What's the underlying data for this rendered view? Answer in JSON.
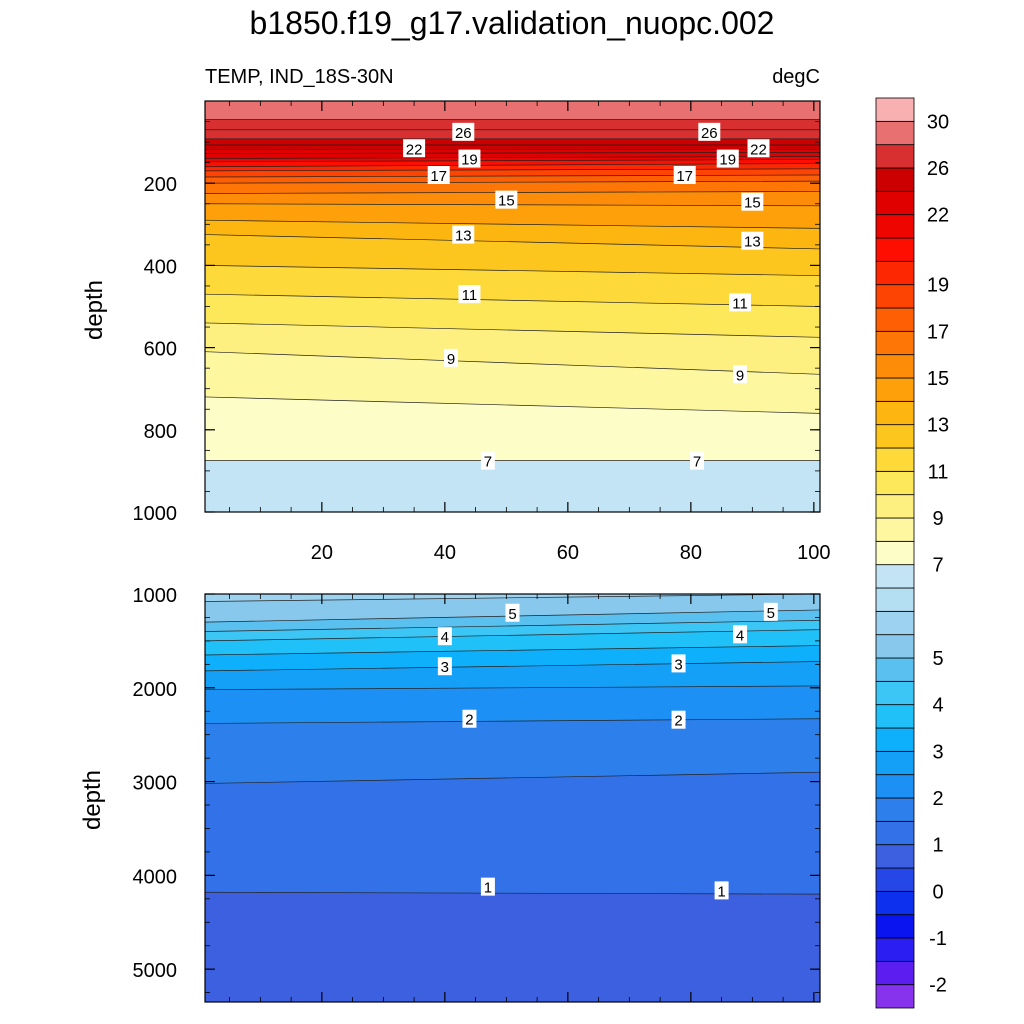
{
  "title": "b1850.f19_g17.validation_nuopc.002",
  "chart_data": [
    {
      "type": "contour",
      "panel": "upper",
      "subtitle_left": "TEMP, IND_18S-30N",
      "subtitle_right": "degC",
      "ylabel": "depth",
      "xlim": [
        1,
        101
      ],
      "ylim": [
        0,
        1000
      ],
      "y_inverted": true,
      "xticks": [
        "20",
        "40",
        "60",
        "80",
        "100"
      ],
      "yticks": [
        "200",
        "400",
        "600",
        "800",
        "1000"
      ],
      "xtick_values": [
        20,
        40,
        60,
        80,
        100
      ],
      "ytick_values": [
        200,
        400,
        600,
        800,
        1000
      ],
      "contours": [
        {
          "level": 28,
          "x": [
            1,
            101
          ],
          "depth": [
            45,
            45
          ]
        },
        {
          "level": 27,
          "x": [
            1,
            101
          ],
          "depth": [
            70,
            70
          ]
        },
        {
          "level": 26,
          "x": [
            1,
            101
          ],
          "depth": [
            92,
            92
          ]
        },
        {
          "level": 25,
          "x": [
            1,
            101
          ],
          "depth": [
            107,
            107
          ]
        },
        {
          "level": 24,
          "x": [
            1,
            101
          ],
          "depth": [
            118,
            118
          ]
        },
        {
          "level": 23,
          "x": [
            1,
            101
          ],
          "depth": [
            128,
            125
          ]
        },
        {
          "level": 22,
          "x": [
            1,
            101
          ],
          "depth": [
            140,
            135
          ]
        },
        {
          "level": 21,
          "x": [
            1,
            101
          ],
          "depth": [
            148,
            142
          ]
        },
        {
          "level": 20,
          "x": [
            1,
            101
          ],
          "depth": [
            160,
            152
          ]
        },
        {
          "level": 19,
          "x": [
            1,
            101
          ],
          "depth": [
            170,
            165
          ]
        },
        {
          "level": 18,
          "x": [
            1,
            101
          ],
          "depth": [
            185,
            180
          ]
        },
        {
          "level": 17,
          "x": [
            1,
            101
          ],
          "depth": [
            200,
            195
          ]
        },
        {
          "level": 16,
          "x": [
            1,
            101
          ],
          "depth": [
            225,
            220
          ]
        },
        {
          "level": 15,
          "x": [
            1,
            101
          ],
          "depth": [
            250,
            255
          ]
        },
        {
          "level": 14,
          "x": [
            1,
            101
          ],
          "depth": [
            290,
            310
          ]
        },
        {
          "level": 13,
          "x": [
            1,
            101
          ],
          "depth": [
            325,
            360
          ]
        },
        {
          "level": 12,
          "x": [
            1,
            101
          ],
          "depth": [
            400,
            425
          ]
        },
        {
          "level": 11,
          "x": [
            1,
            101
          ],
          "depth": [
            470,
            500
          ]
        },
        {
          "level": 10,
          "x": [
            1,
            101
          ],
          "depth": [
            540,
            575
          ]
        },
        {
          "level": 9,
          "x": [
            1,
            101
          ],
          "depth": [
            610,
            665
          ]
        },
        {
          "level": 8,
          "x": [
            1,
            101
          ],
          "depth": [
            720,
            760
          ]
        },
        {
          "level": 7,
          "x": [
            1,
            101
          ],
          "depth": [
            875,
            875
          ]
        }
      ],
      "line_labels": [
        {
          "text": "26",
          "x": 43,
          "depth": 75
        },
        {
          "text": "26",
          "x": 83,
          "depth": 75
        },
        {
          "text": "22",
          "x": 35,
          "depth": 115
        },
        {
          "text": "22",
          "x": 91,
          "depth": 115
        },
        {
          "text": "19",
          "x": 44,
          "depth": 140
        },
        {
          "text": "19",
          "x": 86,
          "depth": 140
        },
        {
          "text": "17",
          "x": 39,
          "depth": 180
        },
        {
          "text": "17",
          "x": 79,
          "depth": 180
        },
        {
          "text": "15",
          "x": 50,
          "depth": 240
        },
        {
          "text": "15",
          "x": 90,
          "depth": 245
        },
        {
          "text": "13",
          "x": 43,
          "depth": 325
        },
        {
          "text": "13",
          "x": 90,
          "depth": 340
        },
        {
          "text": "11",
          "x": 44,
          "depth": 470
        },
        {
          "text": "11",
          "x": 88,
          "depth": 490
        },
        {
          "text": "9",
          "x": 41,
          "depth": 625
        },
        {
          "text": "9",
          "x": 88,
          "depth": 665
        },
        {
          "text": "7",
          "x": 47,
          "depth": 875
        },
        {
          "text": "7",
          "x": 81,
          "depth": 875
        }
      ]
    },
    {
      "type": "contour",
      "panel": "lower",
      "ylabel": "depth",
      "xlim": [
        1,
        101
      ],
      "ylim": [
        1000,
        5350
      ],
      "y_inverted": true,
      "yticks": [
        "1000",
        "2000",
        "3000",
        "4000",
        "5000"
      ],
      "ytick_values": [
        1000,
        2000,
        3000,
        4000,
        5000
      ],
      "contours": [
        {
          "level": 5.5,
          "x": [
            1,
            101
          ],
          "depth": [
            1080,
            1000
          ]
        },
        {
          "level": 5,
          "x": [
            1,
            101
          ],
          "depth": [
            1300,
            1170
          ]
        },
        {
          "level": 4.5,
          "x": [
            1,
            101
          ],
          "depth": [
            1400,
            1280
          ]
        },
        {
          "level": 4,
          "x": [
            1,
            101
          ],
          "depth": [
            1500,
            1380
          ]
        },
        {
          "level": 3.5,
          "x": [
            1,
            101
          ],
          "depth": [
            1650,
            1550
          ]
        },
        {
          "level": 3,
          "x": [
            1,
            101
          ],
          "depth": [
            1820,
            1720
          ]
        },
        {
          "level": 2.5,
          "x": [
            1,
            101
          ],
          "depth": [
            2020,
            1980
          ]
        },
        {
          "level": 2,
          "x": [
            1,
            101
          ],
          "depth": [
            2380,
            2330
          ]
        },
        {
          "level": 1.5,
          "x": [
            1,
            101
          ],
          "depth": [
            3020,
            2900
          ]
        },
        {
          "level": 1,
          "x": [
            1,
            101
          ],
          "depth": [
            4180,
            4200
          ]
        }
      ],
      "line_labels": [
        {
          "text": "5",
          "x": 51,
          "depth": 1200
        },
        {
          "text": "5",
          "x": 93,
          "depth": 1190
        },
        {
          "text": "4",
          "x": 40,
          "depth": 1450
        },
        {
          "text": "4",
          "x": 88,
          "depth": 1430
        },
        {
          "text": "3",
          "x": 40,
          "depth": 1770
        },
        {
          "text": "3",
          "x": 78,
          "depth": 1740
        },
        {
          "text": "2",
          "x": 44,
          "depth": 2330
        },
        {
          "text": "2",
          "x": 78,
          "depth": 2340
        },
        {
          "text": "1",
          "x": 47,
          "depth": 4120
        },
        {
          "text": "1",
          "x": 85,
          "depth": 4160
        }
      ]
    }
  ],
  "colorbar": {
    "unit": "degC",
    "levels": [
      -2.5,
      -2,
      -1.5,
      -1,
      -0.5,
      0,
      0.5,
      1,
      1.5,
      2,
      2.5,
      3,
      3.5,
      4,
      4.5,
      5,
      5.5,
      6,
      6.5,
      7,
      8,
      9,
      10,
      11,
      12,
      13,
      14,
      15,
      16,
      17,
      18,
      19,
      20,
      21,
      22,
      24,
      26,
      28,
      30
    ],
    "colors": [
      "#8733ee",
      "#5b1df0",
      "#2a1ef2",
      "#0a14f0",
      "#0d2fee",
      "#2547e8",
      "#3d60e0",
      "#3371e8",
      "#2d80ec",
      "#1c90f5",
      "#15a0f8",
      "#0fb0fb",
      "#20c0f8",
      "#3cc6f5",
      "#5ac0f0",
      "#88c8ec",
      "#9ed3f0",
      "#b4def2",
      "#c2e4f4",
      "#fdfdc8",
      "#fdf7a0",
      "#fdf080",
      "#fde85a",
      "#fdd93a",
      "#fdc61e",
      "#fdb510",
      "#fda00a",
      "#fd8c08",
      "#fd7606",
      "#fd6004",
      "#fd4402",
      "#fd2802",
      "#fd0e00",
      "#ee0500",
      "#e00000",
      "#cc0000",
      "#d83030",
      "#e87070",
      "#f8b0b0"
    ],
    "labels": [
      "-2",
      "-1",
      "0",
      "1",
      "2",
      "3",
      "4",
      "5",
      "7",
      "9",
      "11",
      "13",
      "15",
      "17",
      "19",
      "22",
      "26",
      "30"
    ],
    "label_values": [
      -2,
      -1,
      0,
      1,
      2,
      3,
      4,
      5,
      7,
      9,
      11,
      13,
      15,
      17,
      19,
      22,
      26,
      30
    ]
  }
}
